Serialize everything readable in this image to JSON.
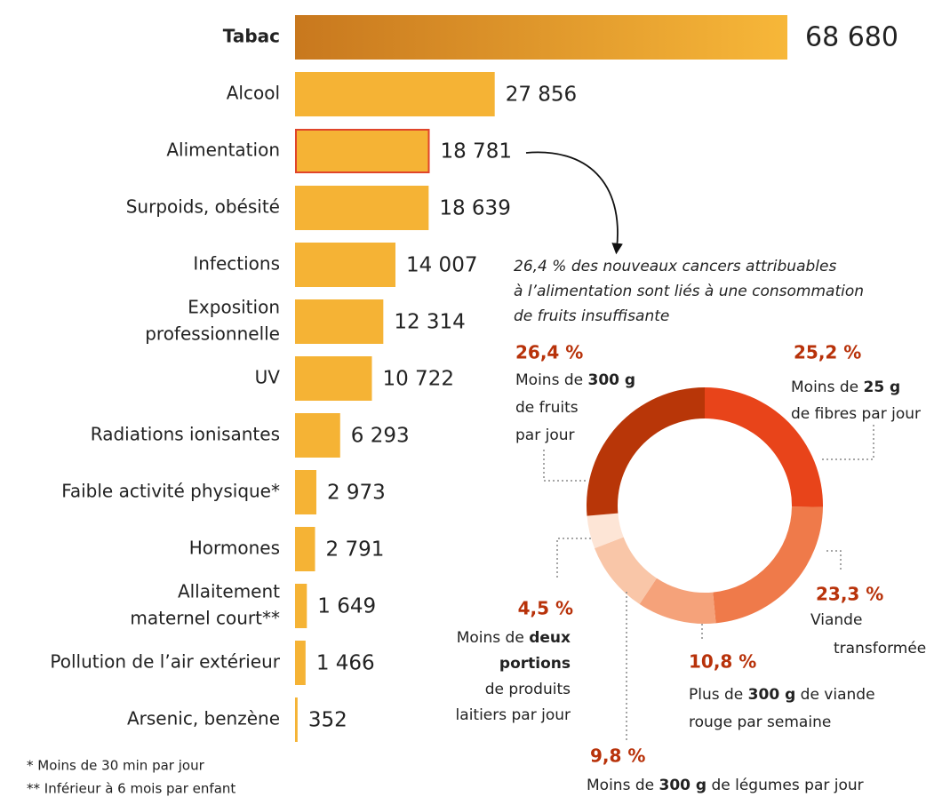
{
  "chart_data": [
    {
      "type": "bar",
      "orientation": "horizontal",
      "color": "#f5b335",
      "categories": [
        "Tabac",
        "Alcool",
        "Alimentation",
        "Surpoids, obésité",
        "Infections",
        [
          "Exposition",
          "professionnelle"
        ],
        "UV",
        "Radiations ionisantes",
        "Faible activité physique*",
        "Hormones",
        [
          "Allaitement",
          "maternel court**"
        ],
        "Pollution de l’air extérieur",
        "Arsenic, benzène"
      ],
      "values": [
        68680,
        27856,
        18781,
        18639,
        14007,
        12314,
        10722,
        6293,
        2973,
        2791,
        1649,
        1466,
        352
      ],
      "value_labels": [
        "68 680",
        "27 856",
        "18 781",
        "18 639",
        "14 007",
        "12 314",
        "10 722",
        "6 293",
        "2 973",
        "2 791",
        "1 649",
        "1 466",
        "352"
      ],
      "footnotes": [
        "* Moins de 30 min par jour",
        "** Inférieur à 6 mois par enfant"
      ]
    },
    {
      "type": "donut",
      "annotation": [
        "26,4 % des nouveaux cancers attribuables",
        "à l’alimentation sont liés à une consommation",
        "de fruits insuffisante"
      ],
      "values": [
        25.2,
        23.3,
        10.8,
        9.8,
        4.5,
        26.4
      ],
      "value_labels": [
        "25,2 %",
        "23,3 %",
        "10,8 %",
        "9,8 %",
        "4,5 %",
        "26,4 %"
      ],
      "colors": [
        "#e8441a",
        "#ef7a4a",
        "#f5a27a",
        "#f9c6a8",
        "#fde5d6",
        "#b83608"
      ],
      "labels": [
        [
          [
            {
              "text": "Moins de "
            },
            {
              "text": "25 g",
              "bold": true
            }
          ],
          [
            {
              "text": "de fibres par jour"
            }
          ]
        ],
        [
          [
            {
              "text": "Viande"
            }
          ],
          [
            {
              "text": "transformée"
            }
          ]
        ],
        [
          [
            {
              "text": "Plus de "
            },
            {
              "text": "300 g",
              "bold": true
            },
            {
              "text": " de viande"
            }
          ],
          [
            {
              "text": "rouge par semaine"
            }
          ]
        ],
        [
          [
            {
              "text": "Moins de "
            },
            {
              "text": "300 g",
              "bold": true
            },
            {
              "text": " de légumes par jour"
            }
          ]
        ],
        [
          [
            {
              "text": "Moins de "
            },
            {
              "text": "deux",
              "bold": true
            }
          ],
          [
            {
              "text": "portions",
              "bold": true
            }
          ],
          [
            {
              "text": "de produits"
            }
          ],
          [
            {
              "text": "laitiers par jour"
            }
          ]
        ],
        [
          [
            {
              "text": "Moins de "
            },
            {
              "text": "300 g",
              "bold": true
            }
          ],
          [
            {
              "text": "de fruits"
            }
          ],
          [
            {
              "text": "par jour"
            }
          ]
        ]
      ]
    }
  ]
}
